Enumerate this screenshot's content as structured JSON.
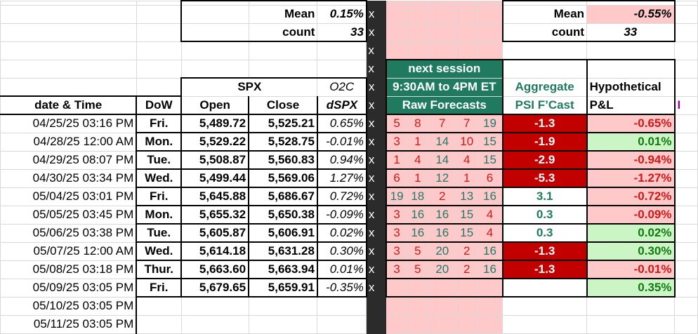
{
  "summary": {
    "mean_label": "Mean",
    "count_label": "count",
    "mean_value": "0.15%",
    "count_value": "33",
    "pl_mean_value": "-0.55%",
    "pl_count_value": "33"
  },
  "separator_mark": "x",
  "header": {
    "spx_label": "SPX",
    "o2c_label": "O2C",
    "date_time": "date & Time",
    "dow": "DoW",
    "open": "Open",
    "close": "Close",
    "dspx": "dSPX",
    "next_session": "next session",
    "session_hours": "9:30AM to 4PM ET",
    "raw_forecasts": "Raw Forecasts",
    "aggregate": "Aggregate",
    "psi_fcast": "PSI F’Cast",
    "hypothetical": "Hypothetical",
    "pl": "P&L",
    "clipped_next": "I"
  },
  "rows": [
    {
      "date": "04/25/25 03:16 PM",
      "dow": "Fri.",
      "open": "5,489.72",
      "close": "5,525.21",
      "dspx": "0.65%",
      "f": [
        "5",
        "8",
        "7",
        "7",
        "19"
      ],
      "fred": [
        true,
        true,
        true,
        true,
        false
      ],
      "psi": "-1.3",
      "psi_red": true,
      "pl": "-0.65%",
      "pl_pos": false
    },
    {
      "date": "04/28/25 12:00 AM",
      "dow": "Mon.",
      "open": "5,529.22",
      "close": "5,528.75",
      "dspx": "-0.01%",
      "f": [
        "3",
        "1",
        "14",
        "10",
        "15"
      ],
      "fred": [
        true,
        true,
        false,
        true,
        false
      ],
      "psi": "-1.9",
      "psi_red": true,
      "pl": "0.01%",
      "pl_pos": true
    },
    {
      "date": "04/29/25 08:07 PM",
      "dow": "Tue.",
      "open": "5,508.87",
      "close": "5,560.83",
      "dspx": "0.94%",
      "f": [
        "1",
        "4",
        "14",
        "4",
        "15"
      ],
      "fred": [
        true,
        true,
        false,
        true,
        false
      ],
      "psi": "-2.9",
      "psi_red": true,
      "pl": "-0.94%",
      "pl_pos": false
    },
    {
      "date": "04/30/25 03:34 PM",
      "dow": "Wed.",
      "open": "5,499.44",
      "close": "5,569.06",
      "dspx": "1.27%",
      "f": [
        "6",
        "1",
        "12",
        "1",
        "6"
      ],
      "fred": [
        true,
        true,
        false,
        true,
        true
      ],
      "psi": "-5.3",
      "psi_red": true,
      "pl": "-1.27%",
      "pl_pos": false
    },
    {
      "date": "05/04/25 03:01 PM",
      "dow": "Fri.",
      "open": "5,645.88",
      "close": "5,686.67",
      "dspx": "0.72%",
      "f": [
        "19",
        "18",
        "2",
        "13",
        "16"
      ],
      "fred": [
        false,
        false,
        true,
        false,
        false
      ],
      "psi": "3.1",
      "psi_red": false,
      "pl": "-0.72%",
      "pl_pos": false
    },
    {
      "date": "05/05/25 03:45 PM",
      "dow": "Mon.",
      "open": "5,655.32",
      "close": "5,650.38",
      "dspx": "-0.09%",
      "f": [
        "3",
        "16",
        "16",
        "15",
        "4"
      ],
      "fred": [
        true,
        false,
        false,
        false,
        true
      ],
      "psi": "0.3",
      "psi_red": false,
      "pl": "-0.09%",
      "pl_pos": false
    },
    {
      "date": "05/06/25 03:38 PM",
      "dow": "Tue.",
      "open": "5,605.87",
      "close": "5,606.91",
      "dspx": "0.02%",
      "f": [
        "3",
        "16",
        "16",
        "15",
        "4"
      ],
      "fred": [
        true,
        false,
        false,
        false,
        true
      ],
      "psi": "0.3",
      "psi_red": false,
      "pl": "0.02%",
      "pl_pos": true
    },
    {
      "date": "05/07/25 12:00 AM",
      "dow": "Wed.",
      "open": "5,614.18",
      "close": "5,631.28",
      "dspx": "0.30%",
      "f": [
        "3",
        "5",
        "20",
        "2",
        "16"
      ],
      "fred": [
        true,
        true,
        false,
        true,
        false
      ],
      "psi": "-1.3",
      "psi_red": true,
      "pl": "0.30%",
      "pl_pos": true
    },
    {
      "date": "05/08/25 03:18 PM",
      "dow": "Thur.",
      "open": "5,663.60",
      "close": "5,663.94",
      "dspx": "0.01%",
      "f": [
        "3",
        "5",
        "20",
        "2",
        "16"
      ],
      "fred": [
        true,
        true,
        false,
        true,
        false
      ],
      "psi": "-1.3",
      "psi_red": true,
      "pl": "-0.01%",
      "pl_pos": false
    },
    {
      "date": "05/09/25 03:05 PM",
      "dow": "Fri.",
      "open": "5,679.65",
      "close": "5,659.91",
      "dspx": "-0.35%",
      "f": [
        "",
        "",
        "",
        "",
        ""
      ],
      "fred": [
        false,
        false,
        false,
        false,
        false
      ],
      "psi": "",
      "psi_red": false,
      "pl": "0.35%",
      "pl_pos": true
    }
  ],
  "trailing_dates": [
    "05/10/25 03:05 PM",
    "05/11/25 03:05 PM"
  ]
}
